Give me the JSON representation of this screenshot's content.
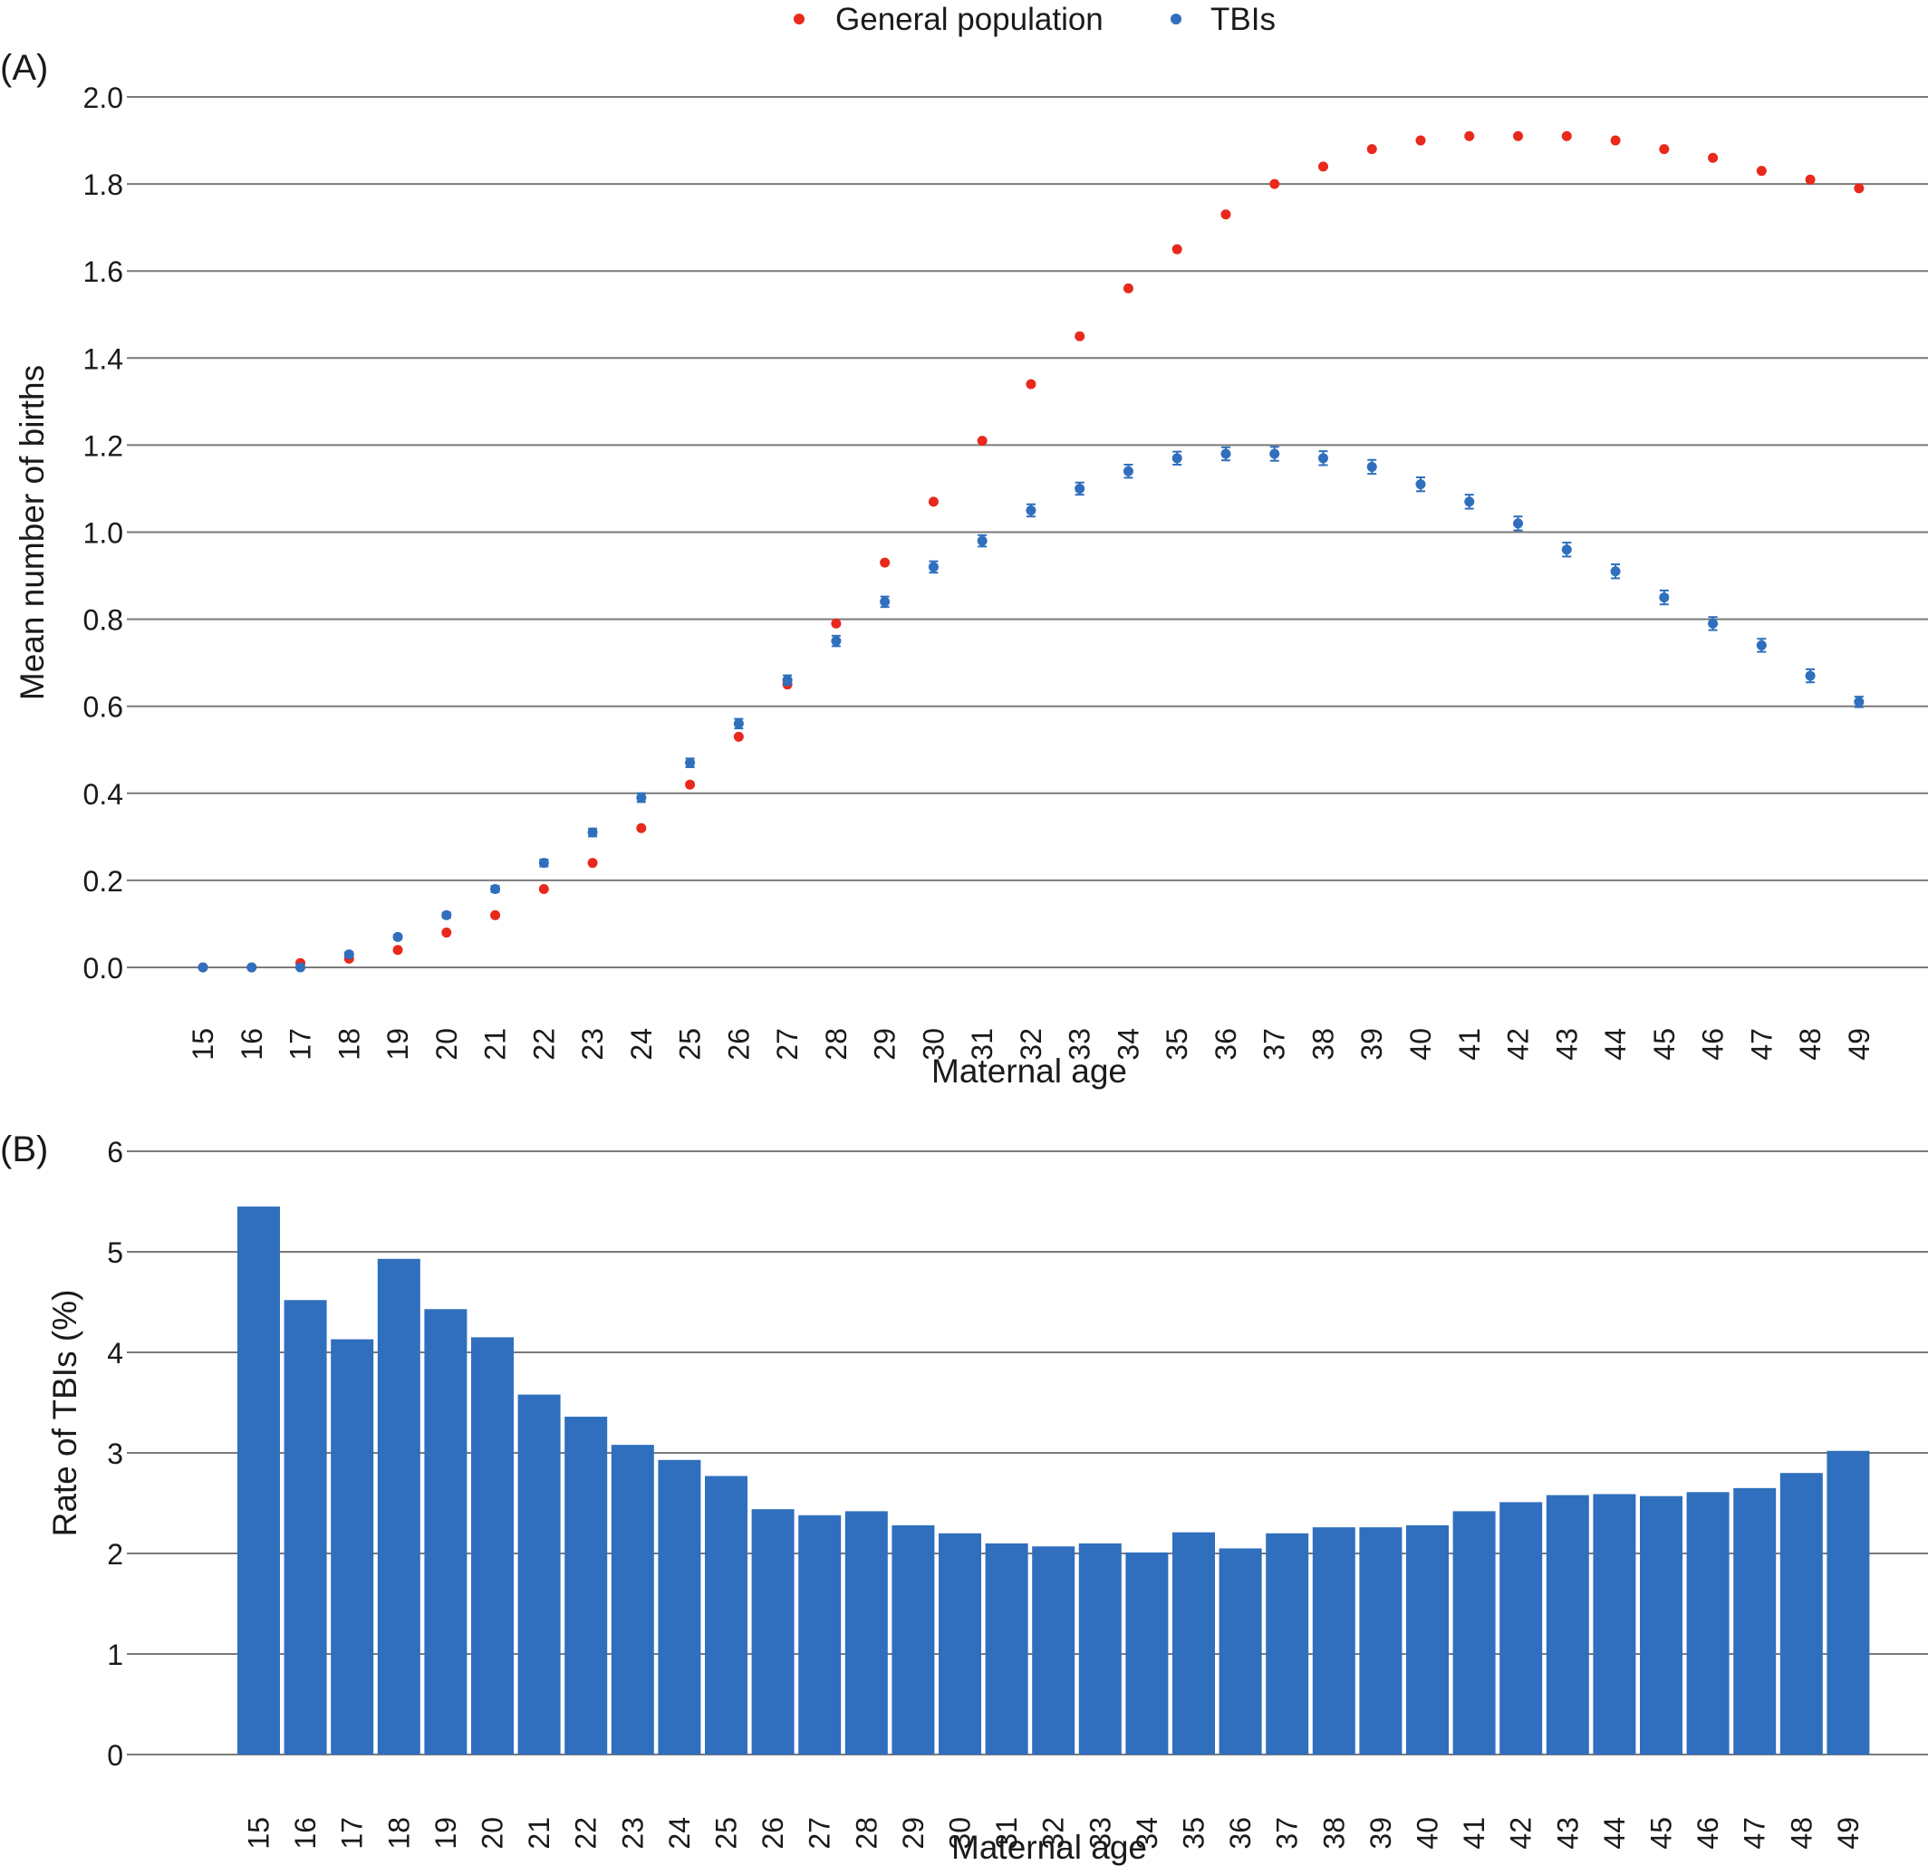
{
  "chart_data": [
    {
      "panel_label": "(A)",
      "type": "scatter",
      "xlabel": "Maternal age",
      "ylabel": "Mean number of births",
      "ylim": [
        0,
        2.0
      ],
      "yticks": [
        "0.0",
        "0.2",
        "0.4",
        "0.6",
        "0.8",
        "1.0",
        "1.2",
        "1.4",
        "1.6",
        "1.8",
        "2.0"
      ],
      "grid": true,
      "legend_position": "top-center",
      "x": [
        15,
        16,
        17,
        18,
        19,
        20,
        21,
        22,
        23,
        24,
        25,
        26,
        27,
        28,
        29,
        30,
        31,
        32,
        33,
        34,
        35,
        36,
        37,
        38,
        39,
        40,
        41,
        42,
        43,
        44,
        45,
        46,
        47,
        48,
        49
      ],
      "series": [
        {
          "name": "General population",
          "color": "#e8291c",
          "values": [
            0.0,
            0.0,
            0.01,
            0.02,
            0.04,
            0.08,
            0.12,
            0.18,
            0.24,
            0.32,
            0.42,
            0.53,
            0.65,
            0.79,
            0.93,
            1.07,
            1.21,
            1.34,
            1.45,
            1.56,
            1.65,
            1.73,
            1.8,
            1.84,
            1.88,
            1.9,
            1.91,
            1.91,
            1.91,
            1.9,
            1.88,
            1.86,
            1.83,
            1.81,
            1.79
          ]
        },
        {
          "name": "TBIs",
          "color": "#2f6fbd",
          "values": [
            0.0,
            0.0,
            0.0,
            0.03,
            0.07,
            0.12,
            0.18,
            0.24,
            0.31,
            0.39,
            0.47,
            0.56,
            0.66,
            0.75,
            0.84,
            0.92,
            0.98,
            1.05,
            1.1,
            1.14,
            1.17,
            1.18,
            1.18,
            1.17,
            1.15,
            1.11,
            1.07,
            1.02,
            0.96,
            0.91,
            0.85,
            0.79,
            0.74,
            0.67,
            0.61
          ],
          "error": [
            0.003,
            0.003,
            0.004,
            0.005,
            0.005,
            0.006,
            0.007,
            0.008,
            0.009,
            0.01,
            0.01,
            0.011,
            0.011,
            0.012,
            0.012,
            0.013,
            0.013,
            0.014,
            0.014,
            0.015,
            0.015,
            0.015,
            0.016,
            0.016,
            0.016,
            0.016,
            0.016,
            0.016,
            0.016,
            0.016,
            0.016,
            0.015,
            0.015,
            0.015,
            0.012
          ]
        }
      ]
    },
    {
      "panel_label": "(B)",
      "type": "bar",
      "xlabel": "Maternal age",
      "ylabel": "Rate of TBIs (%)",
      "ylim": [
        0,
        6
      ],
      "yticks": [
        "0",
        "1",
        "2",
        "3",
        "4",
        "5",
        "6"
      ],
      "grid": true,
      "color": "#2f6fbd",
      "categories": [
        "15",
        "16",
        "17",
        "18",
        "19",
        "20",
        "21",
        "22",
        "23",
        "24",
        "25",
        "26",
        "27",
        "28",
        "29",
        "30",
        "31",
        "32",
        "33",
        "34",
        "35",
        "36",
        "37",
        "38",
        "39",
        "40",
        "41",
        "42",
        "43",
        "44",
        "45",
        "46",
        "47",
        "48",
        "49"
      ],
      "values": [
        5.45,
        4.52,
        4.13,
        4.93,
        4.43,
        4.15,
        3.58,
        3.36,
        3.08,
        2.93,
        2.77,
        2.44,
        2.38,
        2.42,
        2.28,
        2.2,
        2.1,
        2.07,
        2.1,
        2.01,
        2.21,
        2.05,
        2.2,
        2.26,
        2.26,
        2.28,
        2.42,
        2.51,
        2.58,
        2.59,
        2.57,
        2.61,
        2.65,
        2.8,
        3.02
      ]
    }
  ]
}
